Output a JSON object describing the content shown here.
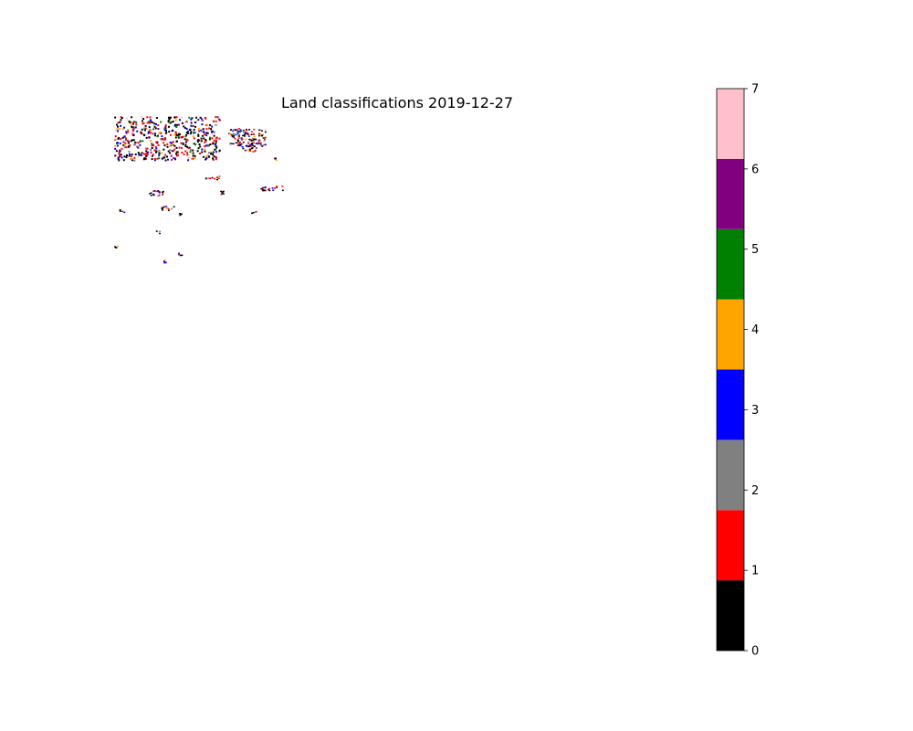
{
  "chart_data": {
    "type": "heatmap",
    "title": "Land classifications 2019-12-27",
    "xlabel": "",
    "ylabel": "",
    "axes_visible": false,
    "colorbar": {
      "position": "right",
      "vmin": 0,
      "vmax": 7,
      "ticks": [
        0,
        1,
        2,
        3,
        4,
        5,
        6,
        7
      ],
      "tick_labels": [
        "0",
        "1",
        "2",
        "3",
        "4",
        "5",
        "6",
        "7"
      ],
      "classes": [
        {
          "value": 0,
          "color": "#000000"
        },
        {
          "value": 1,
          "color": "#ff0000"
        },
        {
          "value": 2,
          "color": "#808080"
        },
        {
          "value": 3,
          "color": "#0000ff"
        },
        {
          "value": 4,
          "color": "#ffa500"
        },
        {
          "value": 5,
          "color": "#008000"
        },
        {
          "value": 6,
          "color": "#800080"
        },
        {
          "value": 7,
          "color": "#ffc0cb"
        }
      ]
    },
    "background_color": "#ffffff"
  }
}
